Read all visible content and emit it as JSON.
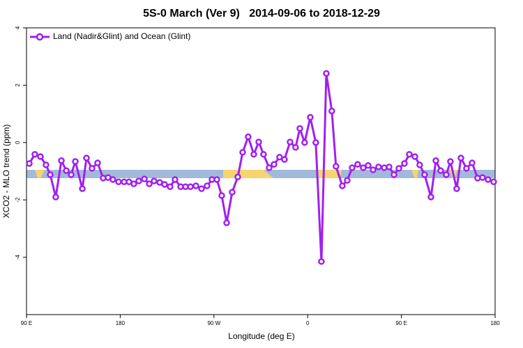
{
  "chart_data": {
    "type": "line",
    "title": "5S-0 March (Ver 9)   2014-09-06 to 2018-12-29",
    "x_label": "Longitude (deg E)",
    "y_label": "XCO2 - MLO trend (ppm)",
    "xlim": [
      90,
      540
    ],
    "ylim": [
      -6,
      4
    ],
    "xticks": [
      {
        "value": 90,
        "label": "90 E"
      },
      180,
      {
        "value": 270,
        "label": "90 W"
      },
      {
        "value": 360,
        "label": "0"
      },
      {
        "value": 450,
        "label": "90 E"
      },
      {
        "value": 540,
        "label": "180"
      }
    ],
    "yticks": [
      -4,
      -2,
      0,
      2,
      4
    ],
    "legend": "top-left",
    "x": [
      92.7,
      98.0,
      103.4,
      108.7,
      112.8,
      118.1,
      123.5,
      128.2,
      132.9,
      136.9,
      143.6,
      147.6,
      152.9,
      158.3,
      163.6,
      168.3,
      173.0,
      178.4,
      183.7,
      188.4,
      193.1,
      197.8,
      203.2,
      207.9,
      212.5,
      217.9,
      222.6,
      227.9,
      232.6,
      238.0,
      242.7,
      247.4,
      252.7,
      258.1,
      263.4,
      268.1,
      272.8,
      277.5,
      282.2,
      287.5,
      292.9,
      297.6,
      302.9,
      308.3,
      313.0,
      317.6,
      323.0,
      327.7,
      333.0,
      337.7,
      343.1,
      348.4,
      352.5,
      357.1,
      362.5,
      367.8,
      373.2,
      377.9,
      383.2,
      387.2,
      393.3,
      398.0,
      402.7,
      408.0,
      413.4,
      418.1,
      422.8,
      428.1,
      433.5,
      438.2,
      442.9,
      447.6,
      452.9,
      457.6,
      463.0,
      467.6,
      472.3,
      478.4,
      483.1,
      487.7,
      493.1,
      497.1,
      503.1,
      507.2,
      512.5,
      517.9,
      523.2,
      527.9,
      533.2,
      538.6
    ],
    "series": [
      {
        "name": "Land (Nadir&Glint) and Ocean (Glint)",
        "color": "#a020f0",
        "values": [
          -0.73,
          -0.41,
          -0.49,
          -0.78,
          -1.12,
          -1.9,
          -0.63,
          -0.98,
          -1.12,
          -0.66,
          -1.61,
          -0.54,
          -0.9,
          -0.71,
          -1.24,
          -1.22,
          -1.29,
          -1.37,
          -1.37,
          -1.37,
          -1.44,
          -1.34,
          -1.27,
          -1.44,
          -1.34,
          -1.39,
          -1.46,
          -1.54,
          -1.29,
          -1.54,
          -1.54,
          -1.54,
          -1.51,
          -1.61,
          -1.51,
          -1.29,
          -1.29,
          -1.85,
          -2.8,
          -1.73,
          -1.2,
          -0.34,
          0.2,
          -0.41,
          0.02,
          -0.41,
          -0.88,
          -0.76,
          -0.51,
          -0.59,
          0.02,
          -0.17,
          0.49,
          0.0,
          0.88,
          0.0,
          -4.15,
          2.41,
          1.1,
          -0.83,
          -1.51,
          -1.32,
          -0.88,
          -0.76,
          -0.88,
          -0.8,
          -0.95,
          -0.85,
          -0.88,
          -0.85,
          -1.12,
          -0.9,
          -0.73,
          -0.41,
          -0.49,
          -0.78,
          -1.12,
          -1.9,
          -0.63,
          -0.98,
          -1.12,
          -0.66,
          -1.61,
          -0.54,
          -0.9,
          -0.71,
          -1.24,
          -1.22,
          -1.29,
          -1.37
        ]
      }
    ]
  }
}
